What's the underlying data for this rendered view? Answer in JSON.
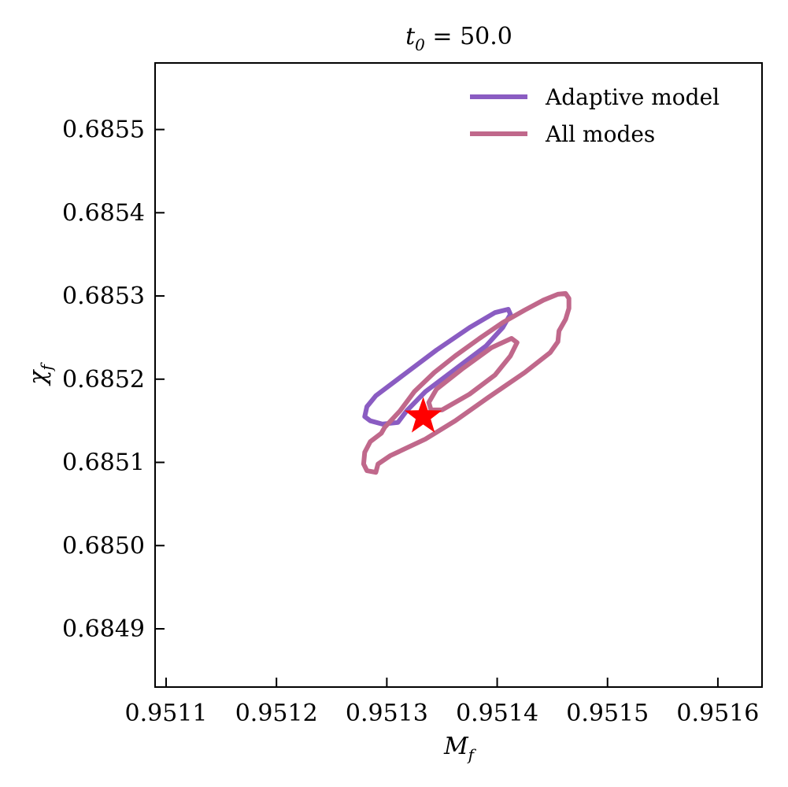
{
  "chart_data": {
    "type": "line",
    "title": "t0 = 50.0",
    "title_parts": {
      "base": "t",
      "sub": "0",
      "rest": " = 50.0"
    },
    "xlabel": "M_f",
    "xlabel_parts": {
      "base": "M",
      "sub": "f"
    },
    "ylabel": "chi_f",
    "ylabel_parts": {
      "base": "χ",
      "sub": "f"
    },
    "xlim": [
      0.95109,
      0.95164
    ],
    "ylim": [
      0.68483,
      0.68558
    ],
    "xticks": [
      0.9511,
      0.9512,
      0.9513,
      0.9514,
      0.9515,
      0.9516
    ],
    "xtick_labels": [
      "0.9511",
      "0.9512",
      "0.9513",
      "0.9514",
      "0.9515",
      "0.9516"
    ],
    "yticks": [
      0.6849,
      0.685,
      0.6851,
      0.6852,
      0.6853,
      0.6854,
      0.6855
    ],
    "ytick_labels": [
      "0.6849",
      "0.6850",
      "0.6851",
      "0.6852",
      "0.6853",
      "0.6854",
      "0.6855"
    ],
    "grid": false,
    "legend_position": "top-right",
    "series": [
      {
        "name": "Adaptive model",
        "color": "#8a5cc2",
        "contours": [
          [
            [
              0.95131,
              0.685148
            ],
            [
              0.951318,
              0.685162
            ],
            [
              0.951335,
              0.685185
            ],
            [
              0.951365,
              0.685215
            ],
            [
              0.95139,
              0.68524
            ],
            [
              0.951405,
              0.685262
            ],
            [
              0.951412,
              0.685278
            ],
            [
              0.95141,
              0.685284
            ],
            [
              0.951398,
              0.68528
            ],
            [
              0.951375,
              0.685262
            ],
            [
              0.951345,
              0.685235
            ],
            [
              0.951315,
              0.685205
            ],
            [
              0.95129,
              0.68518
            ],
            [
              0.951282,
              0.685167
            ],
            [
              0.95128,
              0.685155
            ],
            [
              0.951285,
              0.68515
            ],
            [
              0.951296,
              0.685146
            ],
            [
              0.95131,
              0.685148
            ]
          ]
        ]
      },
      {
        "name": "All modes",
        "color": "#c0688b",
        "contours": [
          [
            [
              0.95129,
              0.685088
            ],
            [
              0.951292,
              0.685098
            ],
            [
              0.951303,
              0.685108
            ],
            [
              0.951335,
              0.685128
            ],
            [
              0.951362,
              0.68515
            ],
            [
              0.951392,
              0.685178
            ],
            [
              0.951425,
              0.685208
            ],
            [
              0.951448,
              0.685232
            ],
            [
              0.951455,
              0.685245
            ],
            [
              0.951456,
              0.685258
            ],
            [
              0.951462,
              0.685272
            ],
            [
              0.951465,
              0.685285
            ],
            [
              0.951465,
              0.685297
            ],
            [
              0.951462,
              0.685303
            ],
            [
              0.951455,
              0.685302
            ],
            [
              0.951442,
              0.685295
            ],
            [
              0.951425,
              0.685283
            ],
            [
              0.951405,
              0.685268
            ],
            [
              0.951384,
              0.685249
            ],
            [
              0.951362,
              0.685228
            ],
            [
              0.951343,
              0.685208
            ],
            [
              0.951325,
              0.685185
            ],
            [
              0.951312,
              0.685162
            ],
            [
              0.951298,
              0.685142
            ],
            [
              0.951295,
              0.685135
            ],
            [
              0.951285,
              0.685125
            ],
            [
              0.95128,
              0.685112
            ],
            [
              0.951279,
              0.685098
            ],
            [
              0.951282,
              0.68509
            ],
            [
              0.95129,
              0.685088
            ]
          ],
          [
            [
              0.95135,
              0.685163
            ],
            [
              0.951375,
              0.685182
            ],
            [
              0.951398,
              0.685205
            ],
            [
              0.951412,
              0.685228
            ],
            [
              0.951418,
              0.685244
            ],
            [
              0.951413,
              0.685249
            ],
            [
              0.951395,
              0.685238
            ],
            [
              0.951368,
              0.685212
            ],
            [
              0.951345,
              0.685188
            ],
            [
              0.951338,
              0.685172
            ],
            [
              0.95134,
              0.685163
            ],
            [
              0.95135,
              0.685163
            ]
          ]
        ]
      }
    ],
    "markers": [
      {
        "type": "star",
        "x": 0.951333,
        "y": 0.685155,
        "color": "#ff0000"
      }
    ]
  }
}
